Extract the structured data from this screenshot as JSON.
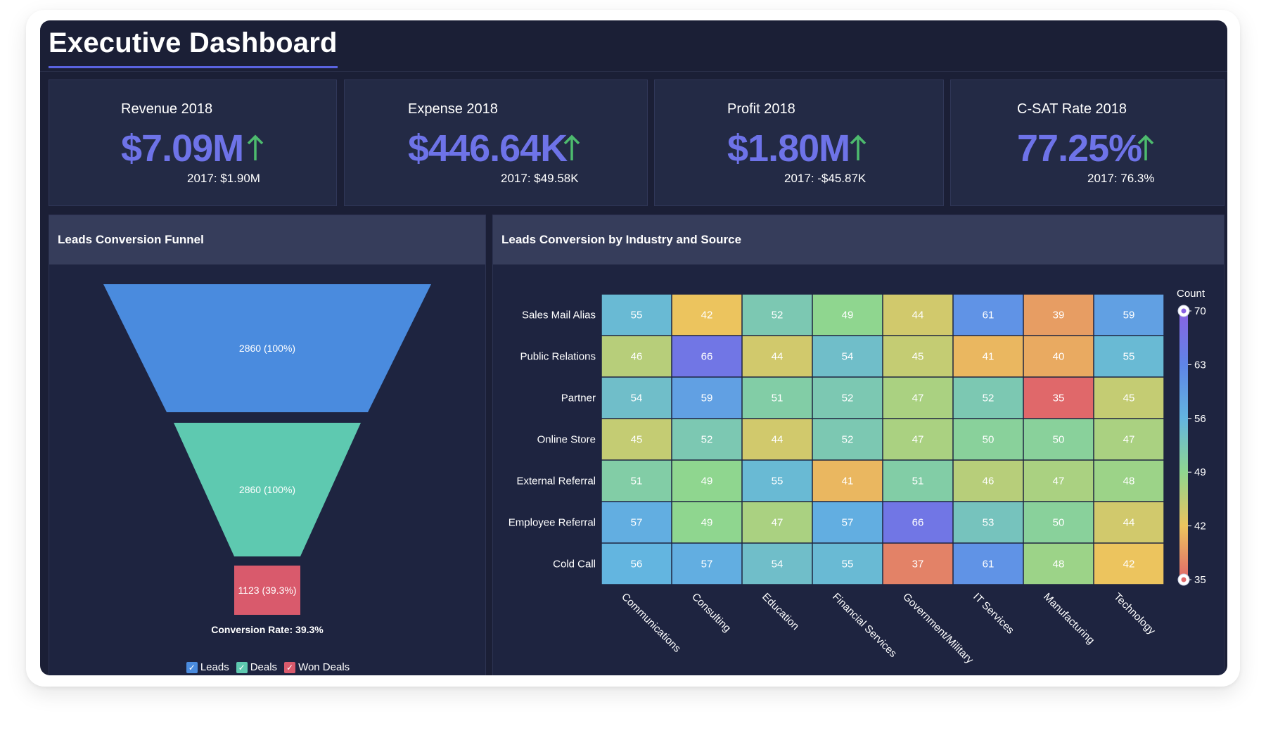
{
  "dashboard": {
    "title": "Executive Dashboard"
  },
  "kpis": [
    {
      "label": "Revenue 2018",
      "value": "$7.09M",
      "prev": "2017: $1.90M",
      "trend": "up"
    },
    {
      "label": "Expense 2018",
      "value": "$446.64K",
      "prev": "2017: $49.58K",
      "trend": "up"
    },
    {
      "label": "Profit 2018",
      "value": "$1.80M",
      "prev": "2017: -$45.87K",
      "trend": "up"
    },
    {
      "label": "C-SAT Rate 2018",
      "value": "77.25%",
      "prev": "2017: 76.3%",
      "trend": "up"
    }
  ],
  "colors": {
    "accent": "#6e73e8",
    "up_arrow": "#4dbb6e",
    "leads": "#4a8bde",
    "deals": "#5ec9b0",
    "won_deals": "#d95a6c"
  },
  "funnel": {
    "title": "Leads Conversion Funnel",
    "conversion_label": "Conversion Rate: 39.3%",
    "legend": [
      {
        "label": "Leads",
        "color": "#4a8bde"
      },
      {
        "label": "Deals",
        "color": "#5ec9b0"
      },
      {
        "label": "Won Deals",
        "color": "#d95a6c"
      }
    ]
  },
  "heatmap": {
    "title": "Leads Conversion by Industry and Source"
  },
  "chart_data": [
    {
      "type": "funnel",
      "title": "Leads Conversion Funnel",
      "stages": [
        {
          "name": "Leads",
          "value": 2860,
          "label": "2860 (100%)",
          "color": "#4a8bde"
        },
        {
          "name": "Deals",
          "value": 2860,
          "label": "2860 (100%)",
          "color": "#5ec9b0"
        },
        {
          "name": "Won Deals",
          "value": 1123,
          "label": "1123 (39.3%)",
          "color": "#d95a6c"
        }
      ],
      "annotation": "Conversion Rate: 39.3%"
    },
    {
      "type": "heatmap",
      "title": "Leads Conversion by Industry and Source",
      "rows": [
        "Sales Mail Alias",
        "Public Relations",
        "Partner",
        "Online Store",
        "External Referral",
        "Employee Referral",
        "Cold Call"
      ],
      "columns": [
        "Communications",
        "Consulting",
        "Education",
        "Financial Services",
        "Government/Military",
        "IT Services",
        "Manufacturing",
        "Technology"
      ],
      "values": [
        [
          55,
          42,
          52,
          49,
          44,
          61,
          39,
          59
        ],
        [
          46,
          66,
          44,
          54,
          45,
          41,
          40,
          55
        ],
        [
          54,
          59,
          51,
          52,
          47,
          52,
          35,
          45
        ],
        [
          45,
          52,
          44,
          52,
          47,
          50,
          50,
          47
        ],
        [
          51,
          49,
          55,
          41,
          51,
          46,
          47,
          48
        ],
        [
          57,
          49,
          47,
          57,
          66,
          53,
          50,
          44
        ],
        [
          56,
          57,
          54,
          55,
          37,
          61,
          48,
          42
        ]
      ],
      "colorbar": {
        "title": "Count",
        "min": 35,
        "max": 70,
        "ticks": [
          "70",
          "63",
          "56",
          "49",
          "42",
          "35"
        ]
      }
    }
  ]
}
